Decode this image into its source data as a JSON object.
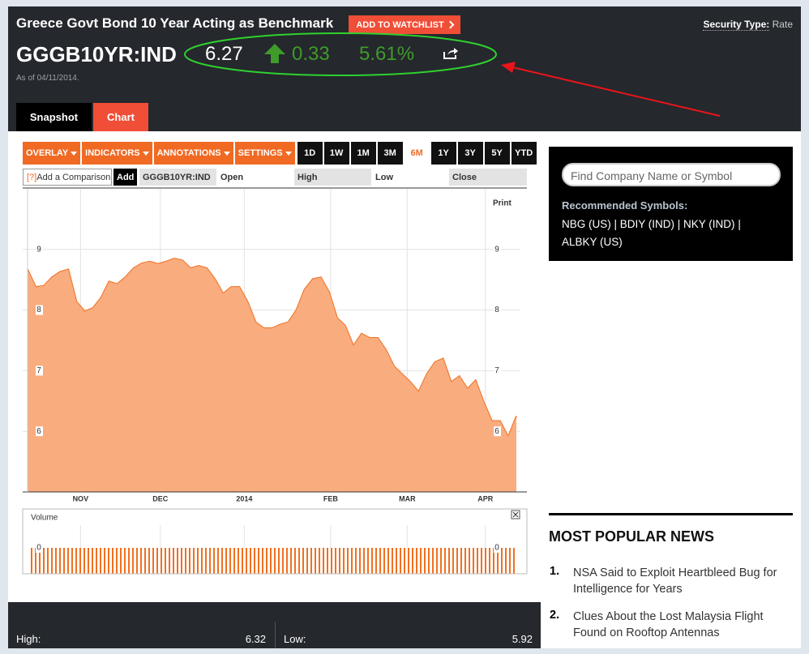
{
  "header": {
    "title": "Greece Govt Bond 10 Year Acting as Benchmark",
    "watchlist_button": "ADD TO WATCHLIST",
    "security_type_label": "Security Type:",
    "security_type": "Rate",
    "ticker": "GGGB10YR:IND",
    "price": "6.27",
    "change": "0.33",
    "change_percent": "5.61%",
    "as_of": "As of 04/11/2014."
  },
  "tabs": [
    "Snapshot",
    "Chart"
  ],
  "toolbar": {
    "menus": [
      "OVERLAY",
      "INDICATORS",
      "ANNOTATIONS",
      "SETTINGS"
    ],
    "ranges": [
      "1D",
      "1W",
      "1M",
      "3M",
      "6M",
      "1Y",
      "3Y",
      "5Y",
      "YTD"
    ],
    "help": "[?]",
    "comparison": "Add a Comparison",
    "add": "Add",
    "symbol": "GGGB10YR:IND",
    "fields": [
      "Open",
      "High",
      "Low",
      "Close"
    ],
    "print": "Print"
  },
  "chart_data": {
    "type": "area",
    "color": "#f07020",
    "fill": "#f9ac7e",
    "values": [
      8.67,
      8.38,
      8.4,
      8.54,
      8.63,
      8.67,
      8.14,
      7.98,
      8.03,
      8.2,
      8.47,
      8.43,
      8.54,
      8.69,
      8.77,
      8.8,
      8.76,
      8.8,
      8.85,
      8.82,
      8.69,
      8.73,
      8.69,
      8.51,
      8.27,
      8.38,
      8.38,
      8.14,
      7.8,
      7.7,
      7.7,
      7.76,
      7.8,
      8.0,
      8.34,
      8.51,
      8.54,
      8.3,
      7.87,
      7.74,
      7.41,
      7.61,
      7.54,
      7.54,
      7.34,
      7.07,
      6.94,
      6.81,
      6.65,
      6.94,
      7.14,
      7.2,
      6.81,
      6.91,
      6.7,
      6.84,
      6.48,
      6.17,
      6.17,
      5.91,
      6.25
    ],
    "xlim": [
      0,
      60
    ],
    "xticks": [
      {
        "value": 6.5,
        "label": "NOV"
      },
      {
        "value": 16.3,
        "label": "DEC"
      },
      {
        "value": 26.6,
        "label": "2014"
      },
      {
        "value": 37.2,
        "label": "FEB"
      },
      {
        "value": 46.6,
        "label": "MAR"
      },
      {
        "value": 56.2,
        "label": "APR"
      }
    ],
    "ylim": [
      5,
      10
    ],
    "yticks": [
      6,
      7,
      8,
      9
    ],
    "grid": true,
    "volume": {
      "title": "Volume",
      "yticks": [
        0
      ]
    }
  },
  "search": {
    "placeholder": "Find Company Name or Symbol",
    "recommended_label": "Recommended Symbols:",
    "symbols": [
      "NBG (US)",
      "BDIY (IND)",
      "NKY (IND)",
      "ALBKY (US)"
    ]
  },
  "news": {
    "title": "MOST POPULAR NEWS",
    "items": [
      {
        "number": "1.",
        "headline": "NSA Said to Exploit Heartbleed Bug for Intelligence for Years"
      },
      {
        "number": "2.",
        "headline": "Clues About the Lost Malaysia Flight Found on Rooftop Antennas"
      }
    ]
  },
  "stats": {
    "high_label": "High:",
    "high": "6.32",
    "low_label": "Low:",
    "low": "5.92"
  }
}
